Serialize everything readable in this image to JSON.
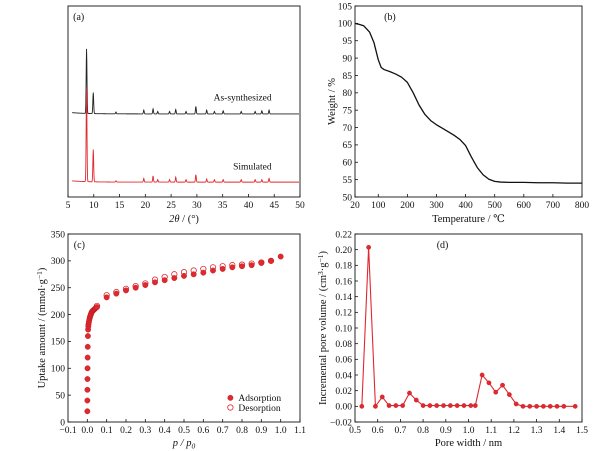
{
  "chart_data": [
    {
      "type": "line",
      "panel_label": "(a)",
      "xlabel_symbol": "2θ",
      "xlabel_unit": " / (°)",
      "xlim": [
        5,
        50
      ],
      "xticks": [
        5,
        10,
        15,
        20,
        25,
        30,
        35,
        40,
        45,
        50
      ],
      "y_axis_ticks_shown": false,
      "series": [
        {
          "name": "As-synthesized",
          "color": "#222222",
          "baseline": 0.55,
          "peaks": [
            {
              "x": 8.6,
              "h": 0.52
            },
            {
              "x": 9.9,
              "h": 0.17
            },
            {
              "x": 14.3,
              "h": 0.015
            },
            {
              "x": 19.7,
              "h": 0.03
            },
            {
              "x": 21.5,
              "h": 0.04
            },
            {
              "x": 22.4,
              "h": 0.02
            },
            {
              "x": 24.7,
              "h": 0.02
            },
            {
              "x": 25.9,
              "h": 0.035
            },
            {
              "x": 27.9,
              "h": 0.02
            },
            {
              "x": 29.8,
              "h": 0.06
            },
            {
              "x": 31.9,
              "h": 0.03
            },
            {
              "x": 33.4,
              "h": 0.02
            },
            {
              "x": 35.1,
              "h": 0.025
            },
            {
              "x": 38.6,
              "h": 0.02
            },
            {
              "x": 41.3,
              "h": 0.02
            },
            {
              "x": 42.6,
              "h": 0.025
            },
            {
              "x": 44.0,
              "h": 0.03
            }
          ]
        },
        {
          "name": "Simulated",
          "color": "#e0282e",
          "baseline": 0.0,
          "peaks": [
            {
              "x": 8.6,
              "h": 0.76
            },
            {
              "x": 9.9,
              "h": 0.26
            },
            {
              "x": 14.3,
              "h": 0.01
            },
            {
              "x": 19.7,
              "h": 0.03
            },
            {
              "x": 21.5,
              "h": 0.05
            },
            {
              "x": 22.4,
              "h": 0.02
            },
            {
              "x": 24.7,
              "h": 0.02
            },
            {
              "x": 25.9,
              "h": 0.04
            },
            {
              "x": 27.9,
              "h": 0.02
            },
            {
              "x": 29.8,
              "h": 0.06
            },
            {
              "x": 31.9,
              "h": 0.025
            },
            {
              "x": 33.4,
              "h": 0.02
            },
            {
              "x": 35.1,
              "h": 0.02
            },
            {
              "x": 38.6,
              "h": 0.02
            },
            {
              "x": 41.3,
              "h": 0.02
            },
            {
              "x": 42.6,
              "h": 0.02
            },
            {
              "x": 44.0,
              "h": 0.03
            }
          ]
        }
      ],
      "annotations": [
        "As-synthesized",
        "Simulated"
      ]
    },
    {
      "type": "line",
      "panel_label": "(b)",
      "xlabel": "Temperature / ℃",
      "ylabel": "Weight / %",
      "xlim": [
        20,
        800
      ],
      "ylim": [
        50,
        105
      ],
      "xticks": [
        20,
        100,
        200,
        300,
        400,
        500,
        600,
        700,
        800
      ],
      "yticks": [
        50,
        55,
        60,
        65,
        70,
        75,
        80,
        85,
        90,
        95,
        100,
        105
      ],
      "series": [
        {
          "color": "#111111",
          "x": [
            20,
            30,
            50,
            70,
            85,
            100,
            110,
            120,
            140,
            160,
            180,
            200,
            220,
            240,
            260,
            280,
            300,
            320,
            340,
            360,
            380,
            400,
            420,
            440,
            460,
            480,
            500,
            520,
            550,
            600,
            650,
            700,
            750,
            800
          ],
          "y": [
            100,
            99.8,
            99.3,
            97.5,
            94.5,
            89.5,
            87.3,
            86.7,
            86.1,
            85.4,
            84.5,
            83.0,
            80.0,
            76.5,
            73.8,
            72.0,
            70.8,
            69.8,
            68.8,
            67.8,
            66.6,
            64.8,
            61.5,
            58.5,
            56.4,
            55.1,
            54.5,
            54.3,
            54.2,
            54.2,
            54.1,
            54.1,
            54.0,
            54.0
          ]
        }
      ]
    },
    {
      "type": "scatter",
      "panel_label": "(c)",
      "xlabel": "p / p",
      "xlabel_sub": "0",
      "ylabel": "Uptake amount / (mmol·g",
      "ylabel_sup": "−1",
      "ylabel_end": ")",
      "xlim": [
        -0.1,
        1.1
      ],
      "ylim": [
        0,
        350
      ],
      "xticks": [
        -0.1,
        0.0,
        0.1,
        0.2,
        0.3,
        0.4,
        0.5,
        0.6,
        0.7,
        0.8,
        0.9,
        1.0,
        1.1
      ],
      "xtick_labels": [
        "−0.1",
        "0.0",
        "0.1",
        "0.2",
        "0.3",
        "0.4",
        "0.5",
        "0.6",
        "0.7",
        "0.8",
        "0.9",
        "1.0",
        "1.1"
      ],
      "yticks": [
        0,
        50,
        100,
        150,
        200,
        250,
        300,
        350
      ],
      "legend_position": "bottom-right",
      "series": [
        {
          "name": "Adsorption",
          "marker": "filled-circle",
          "color": "#e0282e",
          "x": [
            0.0001,
            0.0002,
            0.0004,
            0.0007,
            0.001,
            0.0015,
            0.002,
            0.003,
            0.004,
            0.005,
            0.006,
            0.008,
            0.01,
            0.012,
            0.014,
            0.016,
            0.018,
            0.02,
            0.022,
            0.025,
            0.028,
            0.031,
            0.034,
            0.037,
            0.04,
            0.043,
            0.046,
            0.05,
            0.1,
            0.15,
            0.2,
            0.25,
            0.3,
            0.35,
            0.4,
            0.45,
            0.5,
            0.55,
            0.6,
            0.65,
            0.7,
            0.75,
            0.8,
            0.85,
            0.9,
            0.95,
            1.0
          ],
          "y": [
            20,
            40,
            60,
            80,
            100,
            120,
            140,
            160,
            172,
            178,
            182,
            186,
            190,
            193,
            196,
            198,
            200,
            202,
            204,
            206,
            207,
            208,
            209,
            210,
            211,
            212,
            213,
            214,
            232,
            239,
            245,
            250,
            255,
            260,
            264,
            268,
            272,
            275,
            278,
            282,
            285,
            288,
            290,
            292,
            296,
            300,
            308
          ]
        },
        {
          "name": "Desorption",
          "marker": "open-circle",
          "color": "#e0282e",
          "x": [
            0.05,
            0.1,
            0.15,
            0.2,
            0.25,
            0.3,
            0.35,
            0.4,
            0.45,
            0.5,
            0.55,
            0.6,
            0.65,
            0.7,
            0.75,
            0.8,
            0.85,
            0.9,
            0.95
          ],
          "y": [
            216,
            236,
            242,
            248,
            253,
            258,
            265,
            270,
            275,
            279,
            282,
            285,
            288,
            290,
            292,
            293,
            295,
            297,
            300
          ]
        }
      ]
    },
    {
      "type": "line",
      "panel_label": "(d)",
      "xlabel": "Pore width / nm",
      "ylabel": "Incremental pore volume / (cm",
      "ylabel_sup1": "3",
      "ylabel_mid": "·g",
      "ylabel_sup2": "−1",
      "ylabel_end": ")",
      "xlim": [
        0.5,
        1.5
      ],
      "ylim": [
        -0.02,
        0.22
      ],
      "xticks": [
        0.5,
        0.6,
        0.7,
        0.8,
        0.9,
        1.0,
        1.1,
        1.2,
        1.3,
        1.4,
        1.5
      ],
      "xtick_labels": [
        "0.5",
        "0.6",
        "0.7",
        "0.8",
        "0.9",
        "1.0",
        "1.1",
        "1.2",
        "1.3",
        "1.4",
        "1.5"
      ],
      "yticks": [
        -0.02,
        0.0,
        0.02,
        0.04,
        0.06,
        0.08,
        0.1,
        0.12,
        0.14,
        0.16,
        0.18,
        0.2,
        0.22
      ],
      "ytick_labels": [
        "−0.02",
        "0.00",
        "0.02",
        "0.04",
        "0.06",
        "0.08",
        "0.10",
        "0.12",
        "0.14",
        "0.16",
        "0.18",
        "0.20",
        "0.22"
      ],
      "series": [
        {
          "color": "#e0282e",
          "marker": "filled-circle",
          "x": [
            0.53,
            0.56,
            0.59,
            0.62,
            0.65,
            0.68,
            0.71,
            0.74,
            0.77,
            0.8,
            0.83,
            0.86,
            0.89,
            0.92,
            0.95,
            0.98,
            1.01,
            1.03,
            1.06,
            1.09,
            1.12,
            1.15,
            1.18,
            1.21,
            1.24,
            1.27,
            1.3,
            1.33,
            1.36,
            1.39,
            1.42,
            1.47
          ],
          "y": [
            0.0,
            0.203,
            0.0,
            0.012,
            0.001,
            0.001,
            0.001,
            0.017,
            0.008,
            0.001,
            0.001,
            0.001,
            0.001,
            0.001,
            0.001,
            0.001,
            0.001,
            0.001,
            0.04,
            0.03,
            0.018,
            0.027,
            0.015,
            0.003,
            0.0,
            0.0,
            0.0,
            0.0,
            0.0,
            0.0,
            0.0,
            0.0
          ]
        }
      ]
    }
  ]
}
